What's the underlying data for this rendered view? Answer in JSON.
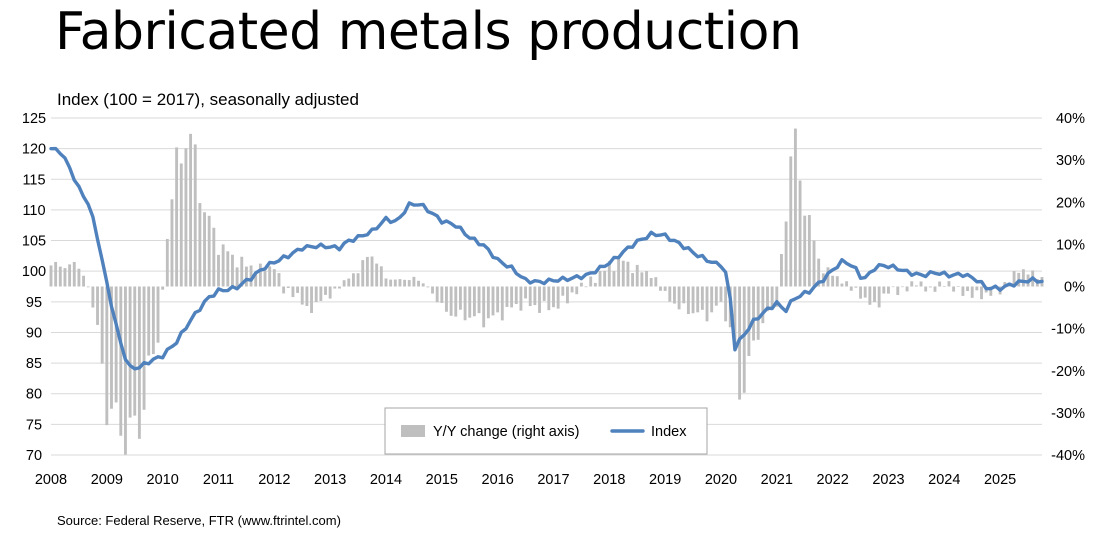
{
  "title": "Fabricated metals production",
  "subtitle": "Index (100 = 2017), seasonally adjusted",
  "source": "Source: Federal Reserve, FTR (www.ftrintel.com)",
  "colors": {
    "index_line": "#4f81bd",
    "bars": "#bfbfbf",
    "grid": "#d9d9d9"
  },
  "chart_data": {
    "type": "bar+line",
    "title": "Fabricated metals production",
    "left_axis": {
      "label": "Index (100 = 2017), seasonally adjusted",
      "min": 70,
      "max": 125,
      "step": 5,
      "ticks": [
        "125",
        "120",
        "115",
        "110",
        "105",
        "100",
        "95",
        "90",
        "85",
        "80",
        "75",
        "70"
      ]
    },
    "right_axis": {
      "min": -40,
      "max": 40,
      "step": 10,
      "ticks": [
        "40%",
        "30%",
        "20%",
        "10%",
        "0%",
        "-10%",
        "-20%",
        "-30%",
        "-40%"
      ]
    },
    "x_axis": {
      "min": 2008,
      "max": 2025.75,
      "ticks": [
        "2008",
        "2009",
        "2010",
        "2011",
        "2012",
        "2013",
        "2014",
        "2015",
        "2016",
        "2017",
        "2018",
        "2019",
        "2020",
        "2021",
        "2022",
        "2023",
        "2024",
        "2025"
      ]
    },
    "legend": {
      "position": "bottom-center",
      "bars_label": "Y/Y change (right axis)",
      "line_label": "Index"
    },
    "index_anchors": [
      [
        2008.0,
        120.0
      ],
      [
        2008.17,
        119.5
      ],
      [
        2008.3,
        117.5
      ],
      [
        2008.5,
        113.5
      ],
      [
        2008.67,
        111
      ],
      [
        2008.8,
        107
      ],
      [
        2009.0,
        98
      ],
      [
        2009.17,
        91
      ],
      [
        2009.3,
        86.5
      ],
      [
        2009.42,
        84.2
      ],
      [
        2009.58,
        84.3
      ],
      [
        2009.75,
        85.2
      ],
      [
        2010.0,
        86.2
      ],
      [
        2010.25,
        88.5
      ],
      [
        2010.5,
        92
      ],
      [
        2010.8,
        95.5
      ],
      [
        2011.0,
        96.8
      ],
      [
        2011.3,
        97.2
      ],
      [
        2011.6,
        99
      ],
      [
        2011.8,
        100.5
      ],
      [
        2012.0,
        101.5
      ],
      [
        2012.25,
        102.5
      ],
      [
        2012.5,
        103.8
      ],
      [
        2012.75,
        104.1
      ],
      [
        2013.0,
        104
      ],
      [
        2013.15,
        103.7
      ],
      [
        2013.3,
        104.8
      ],
      [
        2013.5,
        105.5
      ],
      [
        2013.75,
        106.5
      ],
      [
        2014.0,
        108.5
      ],
      [
        2014.2,
        108
      ],
      [
        2014.4,
        110.8
      ],
      [
        2014.6,
        111
      ],
      [
        2014.75,
        110
      ],
      [
        2015.0,
        108.2
      ],
      [
        2015.25,
        107.5
      ],
      [
        2015.5,
        105.5
      ],
      [
        2015.75,
        104.2
      ],
      [
        2016.0,
        101.8
      ],
      [
        2016.25,
        100.5
      ],
      [
        2016.5,
        98.5
      ],
      [
        2016.75,
        98.2
      ],
      [
        2017.0,
        98.5
      ],
      [
        2017.3,
        98.8
      ],
      [
        2017.6,
        99.3
      ],
      [
        2017.9,
        100.8
      ],
      [
        2018.1,
        102
      ],
      [
        2018.3,
        103.5
      ],
      [
        2018.5,
        104.8
      ],
      [
        2018.75,
        106
      ],
      [
        2018.95,
        106
      ],
      [
        2019.25,
        104.5
      ],
      [
        2019.6,
        102.5
      ],
      [
        2019.9,
        101.2
      ],
      [
        2020.05,
        101
      ],
      [
        2020.15,
        97
      ],
      [
        2020.25,
        87.5
      ],
      [
        2020.4,
        89.5
      ],
      [
        2020.6,
        92
      ],
      [
        2020.8,
        93.5
      ],
      [
        2021.0,
        94.8
      ],
      [
        2021.15,
        93.5
      ],
      [
        2021.3,
        95.5
      ],
      [
        2021.6,
        96.8
      ],
      [
        2021.85,
        98.8
      ],
      [
        2022.0,
        100.2
      ],
      [
        2022.2,
        101.8
      ],
      [
        2022.4,
        100.5
      ],
      [
        2022.55,
        98.5
      ],
      [
        2022.75,
        100.5
      ],
      [
        2022.9,
        101
      ],
      [
        2023.15,
        100.5
      ],
      [
        2023.35,
        99.8
      ],
      [
        2023.6,
        99.3
      ],
      [
        2023.85,
        99.8
      ],
      [
        2024.1,
        99.3
      ],
      [
        2024.35,
        99.5
      ],
      [
        2024.6,
        98.5
      ],
      [
        2024.75,
        97.3
      ],
      [
        2025.0,
        97.2
      ],
      [
        2025.2,
        97.8
      ],
      [
        2025.4,
        98.3
      ],
      [
        2025.55,
        98.6
      ],
      [
        2025.7,
        98.4
      ]
    ],
    "yoy_anchors": [
      [
        2008.0,
        5
      ],
      [
        2008.25,
        5
      ],
      [
        2008.5,
        5
      ],
      [
        2008.67,
        0
      ],
      [
        2008.83,
        -10
      ],
      [
        2009.0,
        -28
      ],
      [
        2009.25,
        -34
      ],
      [
        2009.42,
        -35
      ],
      [
        2009.58,
        -33
      ],
      [
        2009.75,
        -20
      ],
      [
        2009.92,
        -12
      ],
      [
        2010.0,
        0
      ],
      [
        2010.1,
        15
      ],
      [
        2010.25,
        28
      ],
      [
        2010.42,
        37
      ],
      [
        2010.58,
        30
      ],
      [
        2010.75,
        18
      ],
      [
        2011.0,
        10
      ],
      [
        2011.25,
        7
      ],
      [
        2011.5,
        5
      ],
      [
        2011.75,
        4
      ],
      [
        2012.0,
        5
      ],
      [
        2012.17,
        -1
      ],
      [
        2012.42,
        -2
      ],
      [
        2012.58,
        -6
      ],
      [
        2012.75,
        -4
      ],
      [
        2013.0,
        -2
      ],
      [
        2013.25,
        1
      ],
      [
        2013.5,
        4
      ],
      [
        2013.75,
        8
      ],
      [
        2014.0,
        2
      ],
      [
        2014.25,
        1.5
      ],
      [
        2014.5,
        2
      ],
      [
        2014.75,
        0
      ],
      [
        2015.0,
        -5
      ],
      [
        2015.25,
        -7
      ],
      [
        2015.5,
        -7
      ],
      [
        2015.75,
        -8
      ],
      [
        2016.0,
        -7
      ],
      [
        2016.25,
        -5
      ],
      [
        2016.5,
        -4
      ],
      [
        2016.75,
        -5
      ],
      [
        2017.0,
        -5
      ],
      [
        2017.25,
        -3
      ],
      [
        2017.5,
        0
      ],
      [
        2017.75,
        2
      ],
      [
        2018.0,
        5
      ],
      [
        2018.25,
        6
      ],
      [
        2018.5,
        4
      ],
      [
        2018.75,
        3
      ],
      [
        2019.0,
        -2
      ],
      [
        2019.25,
        -5
      ],
      [
        2019.5,
        -6
      ],
      [
        2019.75,
        -7
      ],
      [
        2020.0,
        -4
      ],
      [
        2020.17,
        -10
      ],
      [
        2020.33,
        -26
      ],
      [
        2020.5,
        -18
      ],
      [
        2020.75,
        -8
      ],
      [
        2021.0,
        -4
      ],
      [
        2021.25,
        30
      ],
      [
        2021.33,
        33
      ],
      [
        2021.5,
        20
      ],
      [
        2021.67,
        10
      ],
      [
        2021.83,
        4
      ],
      [
        2022.0,
        3
      ],
      [
        2022.25,
        0.5
      ],
      [
        2022.5,
        -2
      ],
      [
        2022.75,
        -5
      ],
      [
        2023.0,
        -1
      ],
      [
        2023.25,
        -1
      ],
      [
        2023.5,
        1
      ],
      [
        2023.75,
        -1
      ],
      [
        2024.0,
        1
      ],
      [
        2024.25,
        -1
      ],
      [
        2024.5,
        -2
      ],
      [
        2024.75,
        -2
      ],
      [
        2025.0,
        -1
      ],
      [
        2025.25,
        3
      ],
      [
        2025.5,
        4
      ],
      [
        2025.67,
        2
      ]
    ]
  }
}
